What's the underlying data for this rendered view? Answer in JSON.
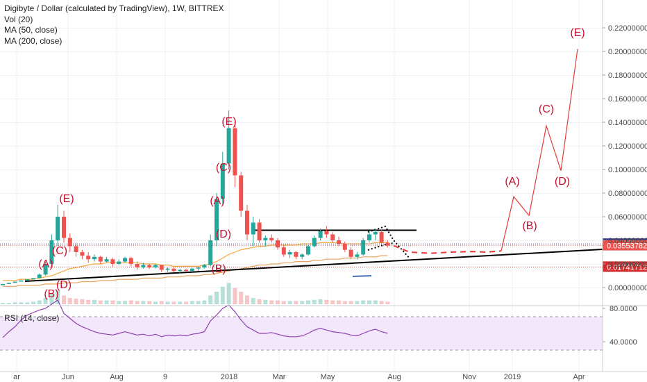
{
  "legend": {
    "title": "Digibyte / Dollar (calculated by TradingView), 1W, BITTREX",
    "vol": "Vol (20)",
    "ma50": "MA (50, close)",
    "ma200": "MA (200, close)"
  },
  "rsi_panel": {
    "label": "RSI (14, close)",
    "ticks": [
      "80.0000",
      "40.0000"
    ]
  },
  "price_axis": {
    "ticks": [
      "0.22000000",
      "0.20000000",
      "0.18000000",
      "0.16000000",
      "0.14000000",
      "0.12000000",
      "0.10000000",
      "0.08000000",
      "0.06000000",
      "0.04000000",
      "0.02000000",
      "0.00000000"
    ]
  },
  "price_tags": [
    {
      "text": "0.03692940",
      "color": "#2e3a8c"
    },
    {
      "text": "0.03553782",
      "color": "#ef5350"
    },
    {
      "text": "0.01741712",
      "color": "#d32f2f"
    }
  ],
  "time_axis": {
    "labels": [
      "ar",
      "Jun",
      "Aug",
      "9",
      "2018",
      "Mar",
      "May",
      "Aug",
      "Nov",
      "2019",
      "Apr"
    ]
  },
  "wave_labels": [
    "(A)",
    "(B)",
    "(C)",
    "(D)",
    "(E)",
    "(A)",
    "(B)",
    "(C)",
    "(D)",
    "(E)",
    "(A)",
    "(B)",
    "(C)",
    "(D)",
    "(E)"
  ],
  "colors": {
    "up": "#26a69a",
    "down": "#ef5350",
    "ma50": "#f4a73b",
    "ma200": "#e8a25a",
    "projection": "#e53935",
    "rsi": "#8e3fb0",
    "rsi_band": "#f3e8fb",
    "trendline": "#000000"
  },
  "chart_data": {
    "type": "line",
    "title": "Digibyte / Dollar (calculated by TradingView), 1W, BITTREX",
    "ylim": [
      -0.02,
      0.23
    ],
    "x_tick_labels": [
      "Jun",
      "Aug",
      "9",
      "2018",
      "Mar",
      "May",
      "Aug",
      "Nov",
      "2019",
      "Apr"
    ],
    "candles": [
      [
        0.002,
        0.003,
        0.002,
        0.003
      ],
      [
        0.003,
        0.004,
        0.003,
        0.004
      ],
      [
        0.004,
        0.005,
        0.004,
        0.005
      ],
      [
        0.005,
        0.006,
        0.005,
        0.006
      ],
      [
        0.006,
        0.007,
        0.006,
        0.007
      ],
      [
        0.007,
        0.008,
        0.007,
        0.008
      ],
      [
        0.008,
        0.012,
        0.008,
        0.011
      ],
      [
        0.011,
        0.022,
        0.01,
        0.02
      ],
      [
        0.02,
        0.045,
        0.018,
        0.04
      ],
      [
        0.04,
        0.07,
        0.035,
        0.06
      ],
      [
        0.06,
        0.065,
        0.038,
        0.042
      ],
      [
        0.042,
        0.046,
        0.03,
        0.035
      ],
      [
        0.035,
        0.038,
        0.026,
        0.03
      ],
      [
        0.03,
        0.032,
        0.024,
        0.027
      ],
      [
        0.027,
        0.03,
        0.021,
        0.024
      ],
      [
        0.024,
        0.028,
        0.022,
        0.026
      ],
      [
        0.026,
        0.027,
        0.02,
        0.022
      ],
      [
        0.022,
        0.026,
        0.021,
        0.024
      ],
      [
        0.024,
        0.025,
        0.018,
        0.02
      ],
      [
        0.02,
        0.024,
        0.019,
        0.022
      ],
      [
        0.022,
        0.026,
        0.021,
        0.025
      ],
      [
        0.025,
        0.026,
        0.018,
        0.02
      ],
      [
        0.02,
        0.022,
        0.015,
        0.017
      ],
      [
        0.017,
        0.021,
        0.016,
        0.019
      ],
      [
        0.019,
        0.02,
        0.016,
        0.017
      ],
      [
        0.017,
        0.02,
        0.016,
        0.019
      ],
      [
        0.019,
        0.019,
        0.013,
        0.015
      ],
      [
        0.015,
        0.017,
        0.013,
        0.016
      ],
      [
        0.016,
        0.017,
        0.013,
        0.014
      ],
      [
        0.014,
        0.016,
        0.012,
        0.015
      ],
      [
        0.015,
        0.016,
        0.013,
        0.014
      ],
      [
        0.014,
        0.017,
        0.013,
        0.016
      ],
      [
        0.016,
        0.018,
        0.014,
        0.017
      ],
      [
        0.017,
        0.02,
        0.016,
        0.019
      ],
      [
        0.019,
        0.045,
        0.018,
        0.04
      ],
      [
        0.04,
        0.08,
        0.035,
        0.075
      ],
      [
        0.075,
        0.115,
        0.07,
        0.105
      ],
      [
        0.105,
        0.15,
        0.1,
        0.135
      ],
      [
        0.135,
        0.14,
        0.085,
        0.095
      ],
      [
        0.095,
        0.098,
        0.06,
        0.065
      ],
      [
        0.065,
        0.07,
        0.04,
        0.045
      ],
      [
        0.045,
        0.06,
        0.035,
        0.055
      ],
      [
        0.055,
        0.058,
        0.038,
        0.04
      ],
      [
        0.04,
        0.044,
        0.035,
        0.042
      ],
      [
        0.042,
        0.045,
        0.038,
        0.04
      ],
      [
        0.04,
        0.042,
        0.032,
        0.034
      ],
      [
        0.034,
        0.036,
        0.026,
        0.028
      ],
      [
        0.028,
        0.032,
        0.025,
        0.03
      ],
      [
        0.03,
        0.031,
        0.024,
        0.026
      ],
      [
        0.026,
        0.029,
        0.024,
        0.028
      ],
      [
        0.028,
        0.036,
        0.027,
        0.035
      ],
      [
        0.035,
        0.044,
        0.034,
        0.042
      ],
      [
        0.042,
        0.05,
        0.04,
        0.048
      ],
      [
        0.048,
        0.052,
        0.042,
        0.045
      ],
      [
        0.045,
        0.047,
        0.038,
        0.04
      ],
      [
        0.04,
        0.043,
        0.035,
        0.037
      ],
      [
        0.037,
        0.039,
        0.03,
        0.032
      ],
      [
        0.032,
        0.034,
        0.024,
        0.026
      ],
      [
        0.026,
        0.03,
        0.024,
        0.028
      ],
      [
        0.028,
        0.042,
        0.027,
        0.04
      ],
      [
        0.04,
        0.048,
        0.038,
        0.045
      ],
      [
        0.045,
        0.05,
        0.04,
        0.047
      ],
      [
        0.047,
        0.049,
        0.036,
        0.038
      ],
      [
        0.038,
        0.04,
        0.034,
        0.0355
      ]
    ],
    "ma50": [
      0.006,
      0.006,
      0.006,
      0.007,
      0.007,
      0.007,
      0.008,
      0.009,
      0.01,
      0.012,
      0.014,
      0.016,
      0.017,
      0.018,
      0.019,
      0.02,
      0.02,
      0.021,
      0.021,
      0.021,
      0.021,
      0.021,
      0.021,
      0.02,
      0.02,
      0.02,
      0.019,
      0.019,
      0.018,
      0.018,
      0.018,
      0.018,
      0.018,
      0.019,
      0.02,
      0.022,
      0.025,
      0.028,
      0.03,
      0.032,
      0.033,
      0.034,
      0.035,
      0.035,
      0.036,
      0.036,
      0.036,
      0.036,
      0.036,
      0.037,
      0.037,
      0.037,
      0.038,
      0.038,
      0.038,
      0.038,
      0.037,
      0.037,
      0.037,
      0.037,
      0.037,
      0.038,
      0.038,
      0.038
    ],
    "ma200": [
      0.001,
      0.001,
      0.001,
      0.002,
      0.002,
      0.002,
      0.002,
      0.003,
      0.003,
      0.003,
      0.004,
      0.004,
      0.004,
      0.005,
      0.005,
      0.005,
      0.006,
      0.006,
      0.006,
      0.007,
      0.007,
      0.007,
      0.007,
      0.008,
      0.008,
      0.008,
      0.008,
      0.009,
      0.009,
      0.009,
      0.01,
      0.01,
      0.01,
      0.011,
      0.011,
      0.012,
      0.013,
      0.014,
      0.015,
      0.016,
      0.017,
      0.018,
      0.019,
      0.019,
      0.02,
      0.02,
      0.021,
      0.021,
      0.022,
      0.022,
      0.022,
      0.023,
      0.023,
      0.024,
      0.024,
      0.024,
      0.025,
      0.025,
      0.025,
      0.026,
      0.026,
      0.026,
      0.027,
      0.027
    ],
    "volume": [
      2,
      2,
      3,
      3,
      3,
      4,
      6,
      10,
      18,
      22,
      14,
      10,
      9,
      8,
      7,
      7,
      6,
      6,
      6,
      5,
      5,
      6,
      5,
      5,
      5,
      4,
      5,
      4,
      4,
      4,
      4,
      5,
      5,
      6,
      14,
      20,
      28,
      34,
      26,
      20,
      14,
      10,
      8,
      7,
      6,
      6,
      5,
      5,
      5,
      5,
      6,
      7,
      8,
      7,
      6,
      6,
      5,
      5,
      5,
      6,
      6,
      6,
      5,
      4
    ],
    "rsi": [
      45,
      52,
      58,
      66,
      72,
      75,
      78,
      80,
      85,
      90,
      74,
      68,
      62,
      58,
      55,
      52,
      50,
      49,
      48,
      50,
      52,
      50,
      48,
      49,
      47,
      49,
      46,
      48,
      47,
      48,
      47,
      49,
      50,
      52,
      65,
      72,
      80,
      84,
      76,
      66,
      58,
      54,
      50,
      50,
      51,
      49,
      47,
      46,
      46,
      47,
      50,
      54,
      56,
      54,
      52,
      51,
      50,
      48,
      47,
      50,
      53,
      55,
      52,
      50
    ],
    "price_levels": {
      "upper_tag": 0.0369294,
      "last_price": 0.03553782,
      "lower_tag": 0.01741712
    },
    "resistance": 0.0485,
    "projection_path_price": [
      0.0355,
      0.03,
      0.029,
      0.03,
      0.0305,
      0.03,
      0.031,
      0.077,
      0.061,
      0.137,
      0.099,
      0.202
    ]
  }
}
